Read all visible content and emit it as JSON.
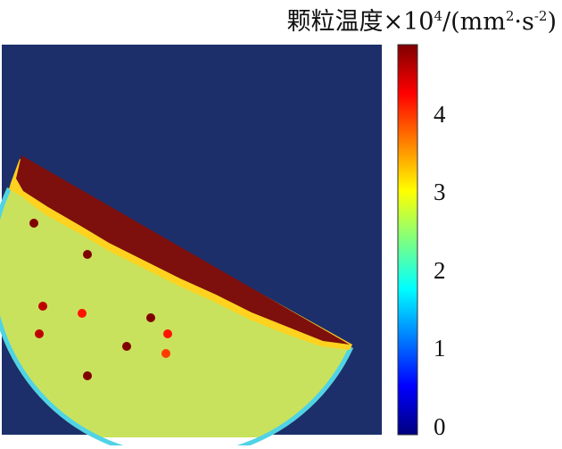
{
  "chart_data": {
    "type": "heatmap",
    "title": "",
    "colorbar": {
      "label_main": "颗粒温度×10",
      "label_exp": "4",
      "label_mid": "/(mm",
      "label_exp2": "2",
      "label_mid2": "·s",
      "label_exp3": "-2",
      "label_end": ")",
      "ticks": [
        "0",
        "1",
        "2",
        "3",
        "4"
      ],
      "range": [
        0,
        4.9
      ],
      "colormap": "jet"
    },
    "field": {
      "background_value": 0,
      "granular_bed_value": 2.6,
      "upper_layer_value": 4.9,
      "rim_value": 1.6
    },
    "hot_particles": [
      {
        "value": 4.9
      },
      {
        "value": 4.9
      },
      {
        "value": 4.6
      },
      {
        "value": 4.2
      },
      {
        "value": 4.6
      },
      {
        "value": 4.9
      },
      {
        "value": 4.9
      },
      {
        "value": 4.2
      },
      {
        "value": 4.9
      },
      {
        "value": 4.0
      }
    ]
  },
  "colors": {
    "background": "#1c2f6a",
    "bed": "#c9e25d",
    "hot_layer": "#7d0f0d",
    "rim": "#4fd3e6",
    "front": "#ffd21f"
  }
}
